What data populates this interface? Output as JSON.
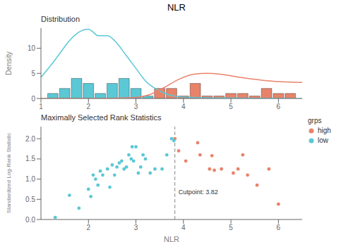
{
  "title": "NLR",
  "chart_data": [
    {
      "type": "bar",
      "title": "Distribution",
      "ylabel": "Density",
      "xlim": [
        1,
        6.5
      ],
      "ylim": [
        0,
        14
      ],
      "xticks": [
        1,
        2,
        3,
        4,
        5,
        6
      ],
      "yticks": [
        0,
        5,
        10
      ],
      "series": [
        {
          "type": "bar",
          "color": "#5BC8D5",
          "x": [
            1.25,
            1.5,
            1.75,
            2.0,
            2.25,
            2.5,
            2.75,
            3.0,
            3.25
          ],
          "values": [
            1.0,
            2.0,
            4.0,
            3.0,
            1.0,
            3.0,
            4.0,
            2.0,
            0.5
          ]
        },
        {
          "type": "bar",
          "color": "#E8836A",
          "x": [
            3.5,
            3.75,
            4.0,
            4.25,
            4.5,
            4.75,
            5.0,
            5.25,
            5.5,
            5.75,
            6.0,
            6.25
          ],
          "values": [
            2.0,
            2.0,
            0.5,
            3.0,
            0.5,
            0.5,
            1.0,
            1.0,
            0.5,
            2.0,
            1.0,
            1.0
          ]
        },
        {
          "type": "line",
          "color": "#5BC8D5",
          "x": [
            1.0,
            1.2,
            1.4,
            1.6,
            1.8,
            2.0,
            2.1,
            2.2,
            2.4,
            2.6,
            2.8,
            3.0,
            3.2,
            3.5,
            3.8,
            4.2,
            4.8,
            5.5,
            6.5
          ],
          "values": [
            4.2,
            6.5,
            9.0,
            11.5,
            13.2,
            13.8,
            13.2,
            12.5,
            12.5,
            11.0,
            8.5,
            6.0,
            3.5,
            1.5,
            0.5,
            0.2,
            0.1,
            0.05,
            0.0
          ]
        },
        {
          "type": "line",
          "color": "#E8836A",
          "x": [
            1.0,
            1.5,
            2.0,
            2.5,
            3.0,
            3.3,
            3.6,
            3.9,
            4.2,
            4.5,
            4.8,
            5.2,
            5.8,
            6.5
          ],
          "values": [
            0.0,
            0.0,
            0.0,
            0.05,
            0.2,
            0.8,
            2.2,
            3.8,
            4.8,
            5.0,
            4.8,
            4.2,
            3.5,
            3.2
          ]
        }
      ]
    },
    {
      "type": "scatter",
      "title": "Maximally Selected Rank Statistics",
      "xlabel": "NLR",
      "ylabel": "Standardized Log-Rank Statistic",
      "xlim": [
        1,
        6.5
      ],
      "ylim": [
        0,
        2.3
      ],
      "xticks": [
        2,
        3,
        4,
        5,
        6
      ],
      "yticks": [
        {
          "value": 0,
          "label": "0.0"
        },
        0.5,
        {
          "value": 1,
          "label": "1.0"
        },
        1.5,
        {
          "value": 2,
          "label": "2.0"
        }
      ],
      "legend": "upper right",
      "legend_title": "grps",
      "series": [
        {
          "name": "high",
          "color": "#E8836A",
          "x": [
            3.82,
            3.9,
            4.05,
            4.3,
            4.35,
            4.55,
            4.6,
            4.65,
            4.8,
            5.05,
            5.15,
            5.25,
            5.35,
            5.55,
            5.8,
            6.0
          ],
          "values": [
            2.0,
            1.7,
            1.45,
            1.9,
            1.6,
            1.25,
            1.58,
            1.22,
            1.25,
            1.15,
            1.25,
            1.6,
            1.1,
            0.85,
            1.25,
            0.38
          ]
        },
        {
          "name": "low",
          "color": "#5BC8D5",
          "x": [
            1.3,
            1.6,
            1.8,
            2.0,
            2.05,
            2.1,
            2.15,
            2.2,
            2.25,
            2.3,
            2.4,
            2.45,
            2.5,
            2.55,
            2.6,
            2.65,
            2.7,
            2.75,
            2.8,
            2.85,
            2.9,
            2.92,
            2.95,
            3.0,
            3.05,
            3.1,
            3.15,
            3.2,
            3.3,
            3.4,
            3.55,
            3.65,
            3.75,
            3.8
          ],
          "values": [
            0.05,
            0.6,
            0.28,
            0.75,
            0.57,
            1.1,
            1.0,
            0.85,
            1.2,
            1.1,
            1.25,
            0.8,
            1.35,
            1.1,
            1.3,
            1.4,
            1.45,
            1.25,
            1.3,
            1.6,
            1.5,
            1.8,
            1.45,
            1.8,
            1.15,
            1.3,
            1.6,
            1.5,
            1.15,
            1.25,
            1.25,
            1.6,
            2.0,
            1.95
          ]
        }
      ],
      "annotations": [
        {
          "type": "vline",
          "x": 3.82,
          "text": "Cutpoint: 3.82",
          "color": "#888888",
          "line_style": "dashed"
        }
      ]
    }
  ]
}
